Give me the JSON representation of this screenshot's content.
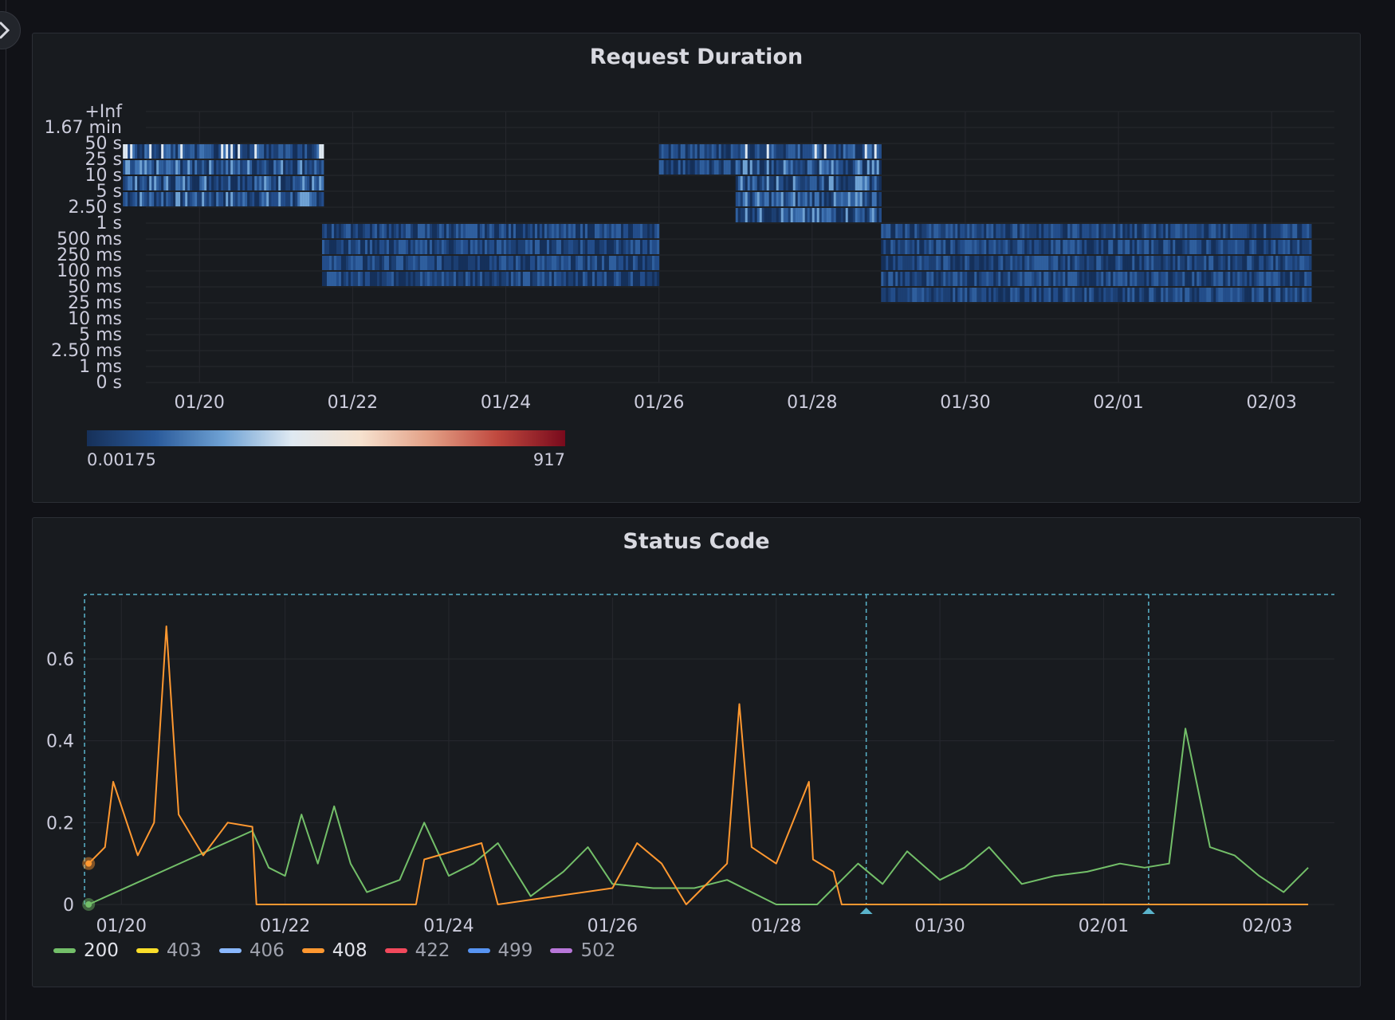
{
  "dashboard": {
    "title": ""
  },
  "duration_panel": {
    "title": "Request Duration",
    "y_buckets": [
      "+Inf",
      "1.67 min",
      "50 s",
      "25 s",
      "10 s",
      "5 s",
      "2.50 s",
      "1 s",
      "500 ms",
      "250 ms",
      "100 ms",
      "50 ms",
      "25 ms",
      "10 ms",
      "5 ms",
      "2.50 ms",
      "1 ms",
      "0 s"
    ],
    "x_ticks": [
      "01/20",
      "01/22",
      "01/24",
      "01/26",
      "01/28",
      "01/30",
      "02/01",
      "02/03"
    ],
    "color_scale": {
      "min_label": "0.00175",
      "max_label": "917",
      "stops": [
        "#163059",
        "#2a5a9a",
        "#6fa2d4",
        "#dfe9f2",
        "#f6e2cf",
        "#e3a086",
        "#c0493f",
        "#780a1c"
      ]
    }
  },
  "status_panel": {
    "title": "Status Code",
    "y_ticks": [
      "0",
      "0.2",
      "0.4",
      "0.6"
    ],
    "x_ticks": [
      "01/20",
      "01/22",
      "01/24",
      "01/26",
      "01/28",
      "01/30",
      "02/01",
      "02/03"
    ],
    "legend": [
      {
        "label": "200",
        "color": "#73bf69",
        "active": true
      },
      {
        "label": "403",
        "color": "#fade2a",
        "active": false
      },
      {
        "label": "406",
        "color": "#8ab8ff",
        "active": false
      },
      {
        "label": "408",
        "color": "#ff9830",
        "active": true
      },
      {
        "label": "422",
        "color": "#f2495c",
        "active": false
      },
      {
        "label": "499",
        "color": "#5794f2",
        "active": false
      },
      {
        "label": "502",
        "color": "#b877d9",
        "active": false
      }
    ]
  },
  "chart_data": [
    {
      "type": "heatmap",
      "title": "Request Duration",
      "x_ticks": [
        "01/20",
        "01/22",
        "01/24",
        "01/26",
        "01/28",
        "01/30",
        "02/01",
        "02/03"
      ],
      "y_buckets": [
        "0 s",
        "1 ms",
        "2.50 ms",
        "5 ms",
        "10 ms",
        "25 ms",
        "50 ms",
        "100 ms",
        "250 ms",
        "500 ms",
        "1 s",
        "2.50 s",
        "5 s",
        "10 s",
        "25 s",
        "50 s",
        "1.67 min",
        "+Inf"
      ],
      "color_range": [
        0.00175,
        917
      ],
      "dense_regions": [
        {
          "x_range": [
            "01/19",
            "01/21.6"
          ],
          "buckets": [
            "5 s",
            "10 s",
            "25 s",
            "50 s"
          ],
          "intensity": "high"
        },
        {
          "x_range": [
            "01/21.6",
            "01/26"
          ],
          "buckets": [
            "100 ms",
            "250 ms",
            "500 ms",
            "1 s"
          ],
          "intensity": "medium"
        },
        {
          "x_range": [
            "01/26",
            "01/27"
          ],
          "buckets": [
            "25 s",
            "50 s"
          ],
          "intensity": "medium"
        },
        {
          "x_range": [
            "01/27",
            "01/28.9"
          ],
          "buckets": [
            "2.50 s",
            "5 s",
            "10 s",
            "25 s",
            "50 s"
          ],
          "intensity": "high"
        },
        {
          "x_range": [
            "01/28.9",
            "02/03.5"
          ],
          "buckets": [
            "50 ms",
            "100 ms",
            "250 ms",
            "500 ms",
            "1 s"
          ],
          "intensity": "medium"
        }
      ]
    },
    {
      "type": "line",
      "title": "Status Code",
      "x_ticks": [
        "01/20",
        "01/22",
        "01/24",
        "01/26",
        "01/28",
        "01/30",
        "02/01",
        "02/03"
      ],
      "ylim": [
        0,
        0.75
      ],
      "series": [
        {
          "name": "200",
          "x": [
            "01/19.6",
            "01/21.6",
            "01/21.8",
            "01/22.0",
            "01/22.2",
            "01/22.4",
            "01/22.6",
            "01/22.8",
            "01/23.0",
            "01/23.4",
            "01/23.7",
            "01/24.0",
            "01/24.3",
            "01/24.6",
            "01/25.0",
            "01/25.4",
            "01/25.7",
            "01/26.0",
            "01/26.5",
            "01/27.0",
            "01/27.4",
            "01/28.0",
            "01/28.5",
            "01/29.0",
            "01/29.3",
            "01/29.6",
            "01/30.0",
            "01/30.3",
            "01/30.6",
            "01/31.0",
            "01/31.4",
            "01/31.8",
            "02/01.2",
            "02/01.5",
            "02/01.8",
            "02/02.0",
            "02/02.3",
            "02/02.6",
            "02/02.9",
            "02/03.2",
            "02/03.5"
          ],
          "values": [
            0,
            0.18,
            0.09,
            0.07,
            0.22,
            0.1,
            0.24,
            0.1,
            0.03,
            0.06,
            0.2,
            0.07,
            0.1,
            0.15,
            0.02,
            0.08,
            0.14,
            0.05,
            0.04,
            0.04,
            0.06,
            0,
            0,
            0.1,
            0.05,
            0.13,
            0.06,
            0.09,
            0.14,
            0.05,
            0.07,
            0.08,
            0.1,
            0.09,
            0.1,
            0.43,
            0.14,
            0.12,
            0.07,
            0.03,
            0.09
          ]
        },
        {
          "name": "408",
          "x": [
            "01/19.6",
            "01/19.8",
            "01/19.9",
            "01/20.2",
            "01/20.4",
            "01/20.55",
            "01/20.7",
            "01/21.0",
            "01/21.3",
            "01/21.6",
            "01/21.65",
            "01/23.6",
            "01/23.7",
            "01/24.4",
            "01/24.6",
            "01/26.0",
            "01/26.3",
            "01/26.6",
            "01/26.9",
            "01/27.4",
            "01/27.55",
            "01/27.7",
            "01/28.0",
            "01/28.4",
            "01/28.45",
            "01/28.7",
            "01/28.8",
            "01/29.3",
            "01/30.0",
            "02/02.0",
            "02/03.5"
          ],
          "values": [
            0.1,
            0.14,
            0.3,
            0.12,
            0.2,
            0.68,
            0.22,
            0.12,
            0.2,
            0.19,
            0,
            0,
            0.11,
            0.15,
            0,
            0.04,
            0.15,
            0.1,
            0,
            0.1,
            0.49,
            0.14,
            0.1,
            0.3,
            0.11,
            0.08,
            0,
            0,
            0,
            0,
            0
          ]
        }
      ]
    }
  ]
}
